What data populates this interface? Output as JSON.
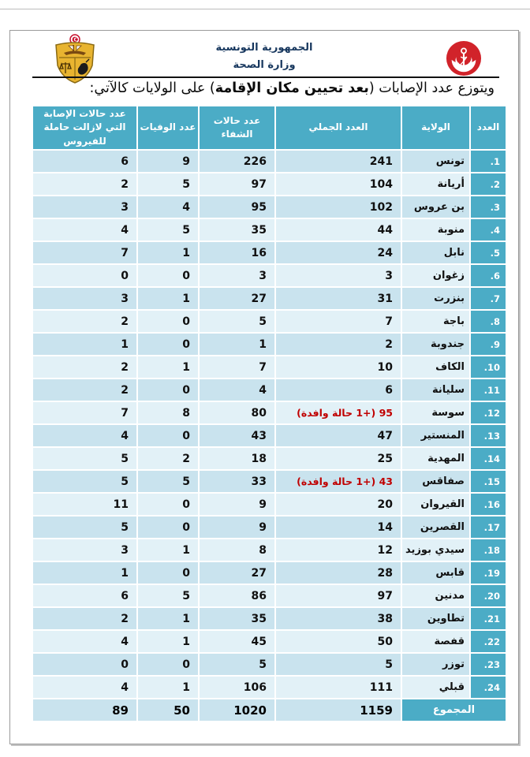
{
  "letterhead": {
    "republic": "الجمهورية التونسية",
    "ministry": "وزارة الصحة"
  },
  "title": {
    "pre": "ويتوزع عدد الإصابات (",
    "bold": "بعد تحيين مكان الإقامة",
    "post": ") على الولايات كالآتي:"
  },
  "colors": {
    "header_teal": "#4BACC6",
    "row_dark": "#C9E3EE",
    "row_light": "#E2F1F7",
    "highlight_red": "#C00000"
  },
  "table": {
    "headers": {
      "rank": "العدد",
      "governorate": "الولاية",
      "total": "العدد الجملي",
      "recovered": "عدد حالات الشفاء",
      "deaths": "عدد الوفيات",
      "active": "عدد حالات الإصابة التي لازالت حاملة للفيروس"
    },
    "rows": [
      {
        "rank": ".1",
        "name": "تونس",
        "total": "241",
        "recovered": "226",
        "deaths": "9",
        "active": "6",
        "red": false
      },
      {
        "rank": ".2",
        "name": "أريانة",
        "total": "104",
        "recovered": "97",
        "deaths": "5",
        "active": "2",
        "red": false
      },
      {
        "rank": ".3",
        "name": "بن عروس",
        "total": "102",
        "recovered": "95",
        "deaths": "4",
        "active": "3",
        "red": false
      },
      {
        "rank": ".4",
        "name": "منوبة",
        "total": "44",
        "recovered": "35",
        "deaths": "5",
        "active": "4",
        "red": false
      },
      {
        "rank": ".5",
        "name": "نابل",
        "total": "24",
        "recovered": "16",
        "deaths": "1",
        "active": "7",
        "red": false
      },
      {
        "rank": ".6",
        "name": "زغوان",
        "total": "3",
        "recovered": "3",
        "deaths": "0",
        "active": "0",
        "red": false
      },
      {
        "rank": ".7",
        "name": "بنزرت",
        "total": "31",
        "recovered": "27",
        "deaths": "1",
        "active": "3",
        "red": false
      },
      {
        "rank": ".8",
        "name": "باجة",
        "total": "7",
        "recovered": "5",
        "deaths": "0",
        "active": "2",
        "red": false
      },
      {
        "rank": ".9",
        "name": "جندوبة",
        "total": "2",
        "recovered": "1",
        "deaths": "0",
        "active": "1",
        "red": false
      },
      {
        "rank": ".10",
        "name": "الكاف",
        "total": "10",
        "recovered": "7",
        "deaths": "1",
        "active": "2",
        "red": false
      },
      {
        "rank": ".11",
        "name": "سليانة",
        "total": "6",
        "recovered": "4",
        "deaths": "0",
        "active": "2",
        "red": false
      },
      {
        "rank": ".12",
        "name": "سوسة",
        "total": "95 (+1 حالة وافدة)",
        "recovered": "80",
        "deaths": "8",
        "active": "7",
        "red": true
      },
      {
        "rank": ".13",
        "name": "المنستير",
        "total": "47",
        "recovered": "43",
        "deaths": "0",
        "active": "4",
        "red": false
      },
      {
        "rank": ".14",
        "name": "المهدية",
        "total": "25",
        "recovered": "18",
        "deaths": "2",
        "active": "5",
        "red": false
      },
      {
        "rank": ".15",
        "name": "صفاقس",
        "total": "43 (+1 حالة وافدة)",
        "recovered": "33",
        "deaths": "5",
        "active": "5",
        "red": true
      },
      {
        "rank": ".16",
        "name": "القيروان",
        "total": "20",
        "recovered": "9",
        "deaths": "0",
        "active": "11",
        "red": false
      },
      {
        "rank": ".17",
        "name": "القصرين",
        "total": "14",
        "recovered": "9",
        "deaths": "0",
        "active": "5",
        "red": false
      },
      {
        "rank": ".18",
        "name": "سيدي بوزيد",
        "total": "12",
        "recovered": "8",
        "deaths": "1",
        "active": "3",
        "red": false
      },
      {
        "rank": ".19",
        "name": "قابس",
        "total": "28",
        "recovered": "27",
        "deaths": "0",
        "active": "1",
        "red": false
      },
      {
        "rank": ".20",
        "name": "مدنين",
        "total": "97",
        "recovered": "86",
        "deaths": "5",
        "active": "6",
        "red": false
      },
      {
        "rank": ".21",
        "name": "تطاوين",
        "total": "38",
        "recovered": "35",
        "deaths": "1",
        "active": "2",
        "red": false
      },
      {
        "rank": ".22",
        "name": "قفصة",
        "total": "50",
        "recovered": "45",
        "deaths": "1",
        "active": "4",
        "red": false
      },
      {
        "rank": ".23",
        "name": "توزر",
        "total": "5",
        "recovered": "5",
        "deaths": "0",
        "active": "0",
        "red": false
      },
      {
        "rank": ".24",
        "name": "قبلي",
        "total": "111",
        "recovered": "106",
        "deaths": "1",
        "active": "4",
        "red": false
      }
    ],
    "total_row": {
      "label": "المجموع",
      "total": "1159",
      "recovered": "1020",
      "deaths": "50",
      "active": "89"
    }
  }
}
